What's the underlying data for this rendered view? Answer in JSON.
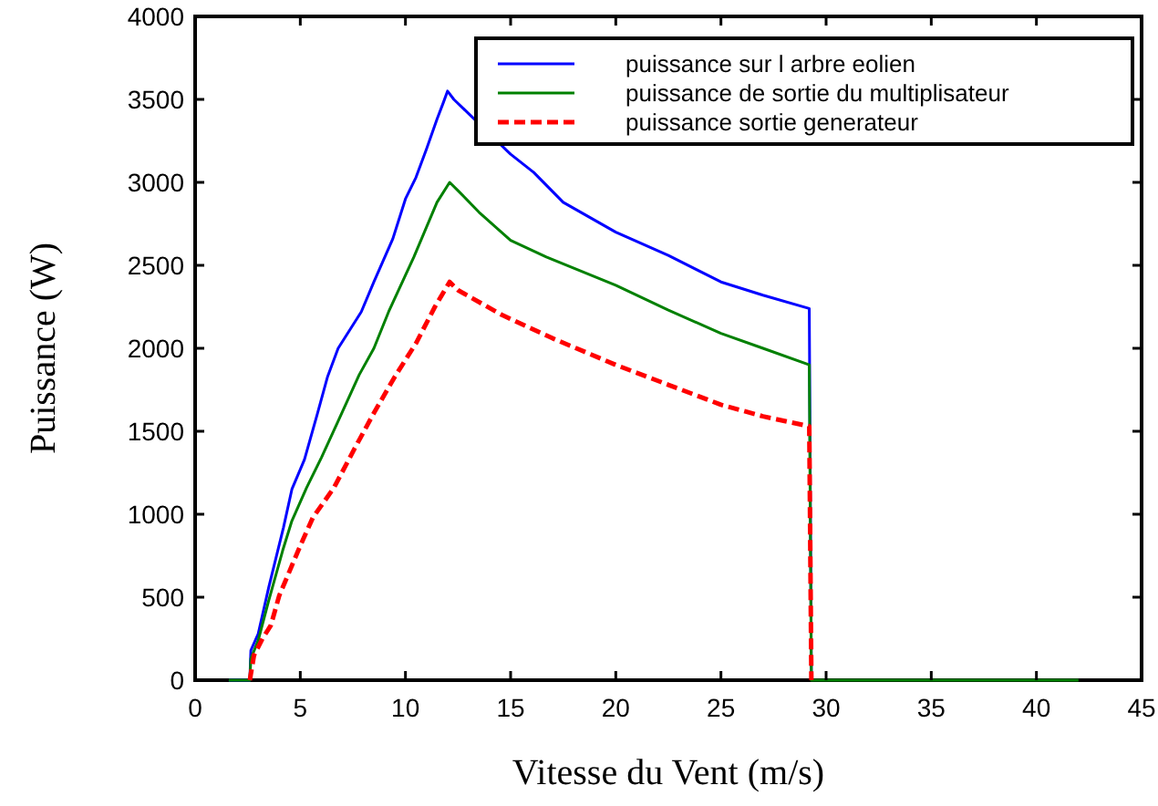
{
  "chart_data": {
    "type": "line",
    "xlabel": "Vitesse du Vent (m/s)",
    "ylabel": "Puissance (W)",
    "xlim": [
      0,
      45
    ],
    "xticks": [
      0,
      5,
      10,
      15,
      20,
      25,
      30,
      35,
      40,
      45
    ],
    "ylim": [
      0,
      4000
    ],
    "yticks": [
      0,
      500,
      1000,
      1500,
      2000,
      2500,
      3000,
      3500,
      4000
    ],
    "grid": false,
    "legend": "top right",
    "series": [
      {
        "name": "puissance sur l arbre eolien",
        "color": "#0000ff",
        "line_style": "solid",
        "x": [
          1.6,
          2.6,
          2.65,
          3.0,
          3.5,
          4.2,
          4.6,
          5.2,
          5.8,
          6.3,
          6.8,
          7.9,
          8.5,
          9.4,
          10.0,
          10.5,
          11.0,
          11.5,
          11.8,
          12.0,
          12.3,
          15,
          16.1,
          17.5,
          20,
          22.5,
          25,
          27,
          29.2,
          29.3
        ],
        "values": [
          0,
          0,
          180,
          280,
          560,
          920,
          1150,
          1330,
          1600,
          1830,
          2000,
          2220,
          2400,
          2660,
          2900,
          3030,
          3200,
          3380,
          3480,
          3550,
          3500,
          3170,
          3060,
          2880,
          2700,
          2560,
          2400,
          2320,
          2240,
          0
        ]
      },
      {
        "name": "puissance de sortie du multiplisateur",
        "color": "#008000",
        "line_style": "solid",
        "x": [
          1.6,
          2.6,
          2.65,
          3.0,
          3.5,
          4.16,
          4.6,
          5.3,
          6.0,
          6.76,
          7.8,
          8.5,
          9.2,
          10.4,
          11.5,
          12.1,
          12.5,
          13.5,
          15,
          16.7,
          20,
          22.5,
          25,
          27,
          29.2,
          29.3,
          35,
          42
        ],
        "values": [
          0,
          0,
          130,
          240,
          480,
          780,
          960,
          1160,
          1340,
          1550,
          1840,
          2000,
          2220,
          2550,
          2880,
          3000,
          2950,
          2820,
          2650,
          2550,
          2380,
          2230,
          2090,
          2000,
          1900,
          0,
          0,
          0
        ]
      },
      {
        "name": "puissance sortie generateur",
        "color": "#ff0000",
        "line_style": "dashed",
        "x": [
          2.6,
          2.8,
          3.2,
          3.6,
          4.0,
          4.5,
          5.0,
          5.6,
          6.6,
          7.6,
          8.5,
          9.5,
          10.5,
          11.4,
          12.1,
          12.5,
          14.6,
          17,
          20,
          22.5,
          25,
          27,
          29.2,
          29.3
        ],
        "values": [
          0,
          150,
          250,
          330,
          510,
          660,
          810,
          980,
          1160,
          1400,
          1610,
          1830,
          2030,
          2250,
          2400,
          2350,
          2200,
          2060,
          1900,
          1780,
          1660,
          1590,
          1530,
          0
        ]
      }
    ]
  }
}
